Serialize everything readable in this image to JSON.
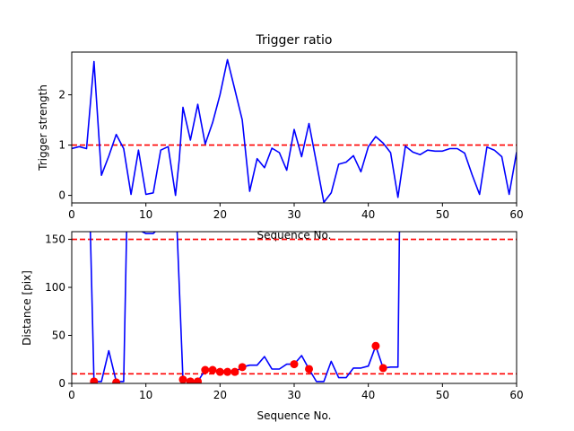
{
  "chart_data": [
    {
      "type": "line",
      "title": "Trigger ratio",
      "xlabel": "Sequence No.",
      "ylabel": "Trigger strength",
      "xlim": [
        0,
        60
      ],
      "ylim": [
        -0.15,
        2.85
      ],
      "xticks": [
        0,
        10,
        20,
        30,
        40,
        50,
        60
      ],
      "yticks": [
        0,
        1,
        2
      ],
      "grid": false,
      "threshold": {
        "y": 1,
        "color": "#ff0000",
        "style": "dashed"
      },
      "series": [
        {
          "color": "#0000ff",
          "x": [
            0,
            1,
            2,
            3,
            4,
            5,
            6,
            7,
            8,
            9,
            10,
            11,
            12,
            13,
            14,
            14.5,
            15,
            16,
            17,
            18,
            19,
            20,
            21,
            22,
            23,
            24,
            25,
            26,
            27,
            28,
            29,
            30,
            31,
            32,
            33,
            34,
            35,
            36,
            37,
            38,
            39,
            40,
            41,
            42,
            43,
            44,
            45,
            46,
            47,
            48,
            49,
            50,
            51,
            52,
            53,
            54,
            55,
            56,
            57,
            58,
            59,
            60
          ],
          "values": [
            0.93,
            0.97,
            0.93,
            2.66,
            0.4,
            0.78,
            1.21,
            0.93,
            0.02,
            0.9,
            0.02,
            0.05,
            0.9,
            0.97,
            0.0,
            0.72,
            1.75,
            1.1,
            1.81,
            1.02,
            1.45,
            2.0,
            2.7,
            2.1,
            1.5,
            0.08,
            0.73,
            0.55,
            0.94,
            0.85,
            0.5,
            1.31,
            0.77,
            1.43,
            0.65,
            -0.14,
            0.05,
            0.62,
            0.66,
            0.79,
            0.47,
            0.97,
            1.17,
            1.04,
            0.85,
            -0.04,
            0.98,
            0.86,
            0.81,
            0.9,
            0.88,
            0.88,
            0.93,
            0.93,
            0.84,
            0.41,
            0.02,
            0.96,
            0.9,
            0.77,
            0.02,
            0.86
          ]
        }
      ]
    },
    {
      "type": "line",
      "title": "",
      "xlabel": "Sequence No.",
      "ylabel": "Distance [pix]",
      "xlim": [
        0,
        60
      ],
      "ylim": [
        0,
        158
      ],
      "xticks": [
        0,
        10,
        20,
        30,
        40,
        50,
        60
      ],
      "yticks": [
        0,
        50,
        100,
        150
      ],
      "grid": false,
      "thresholds": [
        {
          "y": 150,
          "color": "#ff0000",
          "style": "dashed"
        },
        {
          "y": 10,
          "color": "#ff0000",
          "style": "dashed"
        }
      ],
      "series": [
        {
          "color": "#0000ff",
          "x": [
            2.5,
            3,
            4,
            5,
            6,
            7,
            7.4,
            8,
            9,
            10,
            11,
            11.5,
            14.2,
            15,
            16,
            17,
            18,
            19,
            20,
            21,
            22,
            23,
            24,
            25,
            26,
            27,
            28,
            29,
            30,
            31,
            32,
            33,
            34,
            35,
            36,
            37,
            38,
            39,
            40,
            41,
            42,
            43,
            44,
            44.2
          ],
          "values": [
            160,
            2,
            2,
            34,
            2,
            2,
            160,
            160,
            160,
            156,
            156,
            160,
            160,
            4,
            2,
            2,
            14,
            14,
            12,
            12,
            12,
            17,
            19,
            19,
            28,
            15,
            15,
            20,
            20,
            29,
            15,
            2,
            2,
            23,
            6,
            6,
            16,
            16,
            18,
            39,
            16,
            17,
            17,
            160
          ]
        },
        {
          "name": "",
          "color": "#ff0000",
          "marker": "circle",
          "x": [
            3,
            6,
            15,
            16,
            17,
            18,
            19,
            20,
            21,
            22,
            23,
            30,
            32,
            41,
            42
          ],
          "values": [
            2,
            1,
            4,
            2,
            2,
            14,
            14,
            12,
            12,
            12,
            17,
            20,
            15,
            39,
            16
          ]
        }
      ]
    }
  ]
}
